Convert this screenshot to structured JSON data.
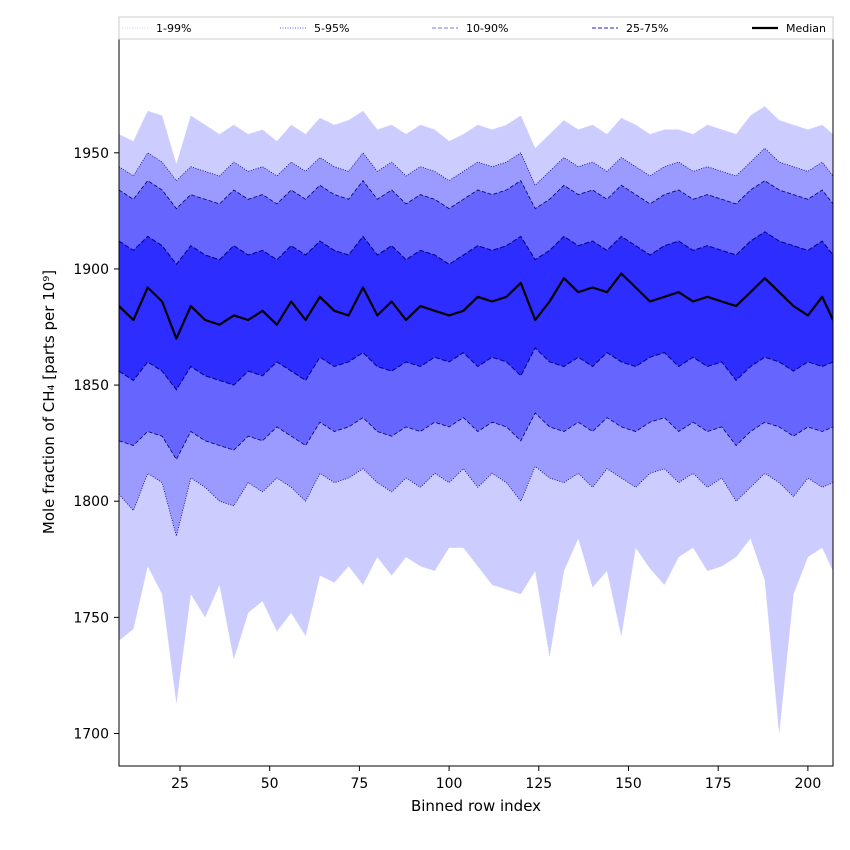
{
  "chart_data": {
    "type": "area",
    "xlabel": "Binned row index",
    "ylabel": "Mole fraction of CH₄ [parts per 10⁹]",
    "xlim": [
      8,
      207
    ],
    "ylim": [
      1686,
      1999
    ],
    "x_ticks": [
      25,
      50,
      75,
      100,
      125,
      150,
      175,
      200
    ],
    "y_ticks": [
      1700,
      1750,
      1800,
      1850,
      1900,
      1950
    ],
    "grid": false,
    "legend_position": "top",
    "legend": [
      {
        "label": "1-99%",
        "style": "dotted",
        "color": "#ccccff"
      },
      {
        "label": "5-95%",
        "style": "dotted",
        "color": "#5555ff"
      },
      {
        "label": "10-90%",
        "style": "dashed",
        "color": "#7777ff"
      },
      {
        "label": "25-75%",
        "style": "dashed",
        "color": "#2222dd"
      },
      {
        "label": "Median",
        "style": "solid",
        "color": "#000000"
      }
    ],
    "colors": {
      "band_1_99": "#ccccff",
      "band_5_95": "#9a9aff",
      "band_10_90": "#6666ff",
      "band_25_75": "#2d2dff",
      "edge_dark": "#000080",
      "median": "#000000"
    },
    "x": [
      8,
      12,
      16,
      20,
      24,
      28,
      32,
      36,
      40,
      44,
      48,
      52,
      56,
      60,
      64,
      68,
      72,
      76,
      80,
      84,
      88,
      92,
      96,
      100,
      104,
      108,
      112,
      116,
      120,
      124,
      128,
      132,
      136,
      140,
      144,
      148,
      152,
      156,
      160,
      164,
      168,
      172,
      176,
      180,
      184,
      188,
      192,
      196,
      200,
      204,
      207
    ],
    "series": [
      {
        "name": "1-99%",
        "lower": [
          1740,
          1745,
          1772,
          1760,
          1713,
          1760,
          1750,
          1764,
          1732,
          1752,
          1757,
          1744,
          1752,
          1742,
          1768,
          1765,
          1772,
          1764,
          1776,
          1768,
          1776,
          1772,
          1770,
          1780,
          1780,
          1772,
          1764,
          1762,
          1760,
          1770,
          1733,
          1770,
          1784,
          1763,
          1770,
          1742,
          1780,
          1771,
          1764,
          1776,
          1780,
          1770,
          1772,
          1776,
          1784,
          1766,
          1700,
          1760,
          1776,
          1780,
          1770
        ],
        "upper": [
          1958,
          1955,
          1968,
          1966,
          1945,
          1966,
          1962,
          1958,
          1962,
          1958,
          1960,
          1955,
          1962,
          1958,
          1965,
          1962,
          1964,
          1968,
          1960,
          1962,
          1958,
          1962,
          1960,
          1955,
          1958,
          1962,
          1960,
          1962,
          1966,
          1952,
          1958,
          1964,
          1960,
          1962,
          1958,
          1965,
          1962,
          1958,
          1960,
          1960,
          1958,
          1962,
          1960,
          1958,
          1966,
          1970,
          1964,
          1962,
          1960,
          1962,
          1958
        ]
      },
      {
        "name": "5-95%",
        "lower": [
          1803,
          1796,
          1812,
          1808,
          1785,
          1810,
          1806,
          1800,
          1798,
          1808,
          1804,
          1810,
          1806,
          1800,
          1812,
          1808,
          1810,
          1814,
          1808,
          1804,
          1810,
          1806,
          1812,
          1808,
          1814,
          1806,
          1812,
          1808,
          1800,
          1815,
          1810,
          1808,
          1812,
          1806,
          1814,
          1810,
          1806,
          1812,
          1814,
          1808,
          1812,
          1806,
          1810,
          1800,
          1806,
          1812,
          1808,
          1802,
          1810,
          1806,
          1808
        ],
        "upper": [
          1944,
          1940,
          1950,
          1946,
          1938,
          1944,
          1942,
          1940,
          1946,
          1942,
          1944,
          1940,
          1946,
          1942,
          1948,
          1944,
          1942,
          1950,
          1942,
          1946,
          1940,
          1944,
          1942,
          1938,
          1942,
          1946,
          1944,
          1946,
          1950,
          1936,
          1942,
          1948,
          1944,
          1946,
          1942,
          1948,
          1944,
          1940,
          1944,
          1946,
          1942,
          1944,
          1942,
          1940,
          1946,
          1952,
          1946,
          1944,
          1942,
          1946,
          1940
        ]
      },
      {
        "name": "10-90%",
        "lower": [
          1826,
          1824,
          1830,
          1828,
          1818,
          1830,
          1826,
          1824,
          1822,
          1828,
          1826,
          1832,
          1828,
          1824,
          1834,
          1830,
          1832,
          1836,
          1830,
          1828,
          1832,
          1830,
          1834,
          1832,
          1836,
          1830,
          1834,
          1832,
          1826,
          1838,
          1832,
          1830,
          1834,
          1830,
          1836,
          1832,
          1830,
          1834,
          1836,
          1830,
          1834,
          1830,
          1832,
          1824,
          1830,
          1834,
          1832,
          1828,
          1832,
          1830,
          1832
        ],
        "upper": [
          1934,
          1930,
          1938,
          1934,
          1926,
          1932,
          1930,
          1928,
          1934,
          1930,
          1932,
          1928,
          1934,
          1930,
          1936,
          1932,
          1930,
          1938,
          1930,
          1934,
          1928,
          1932,
          1930,
          1926,
          1930,
          1934,
          1932,
          1934,
          1938,
          1926,
          1930,
          1936,
          1932,
          1934,
          1930,
          1936,
          1932,
          1928,
          1932,
          1934,
          1930,
          1932,
          1930,
          1928,
          1934,
          1938,
          1934,
          1932,
          1930,
          1934,
          1928
        ]
      },
      {
        "name": "25-75%",
        "lower": [
          1856,
          1852,
          1860,
          1856,
          1848,
          1858,
          1854,
          1852,
          1850,
          1856,
          1854,
          1860,
          1856,
          1852,
          1862,
          1858,
          1860,
          1864,
          1858,
          1856,
          1860,
          1858,
          1862,
          1860,
          1864,
          1858,
          1862,
          1860,
          1854,
          1866,
          1860,
          1858,
          1862,
          1858,
          1864,
          1860,
          1858,
          1862,
          1864,
          1858,
          1862,
          1858,
          1860,
          1852,
          1858,
          1862,
          1860,
          1856,
          1860,
          1858,
          1860
        ],
        "upper": [
          1912,
          1908,
          1914,
          1910,
          1902,
          1910,
          1906,
          1904,
          1910,
          1906,
          1908,
          1904,
          1910,
          1906,
          1912,
          1908,
          1906,
          1914,
          1906,
          1910,
          1904,
          1908,
          1906,
          1902,
          1906,
          1910,
          1908,
          1910,
          1914,
          1904,
          1908,
          1914,
          1910,
          1912,
          1908,
          1914,
          1910,
          1906,
          1910,
          1912,
          1908,
          1910,
          1908,
          1906,
          1912,
          1916,
          1912,
          1910,
          1908,
          1912,
          1906
        ]
      },
      {
        "name": "Median",
        "values": [
          1884,
          1878,
          1892,
          1886,
          1870,
          1884,
          1878,
          1876,
          1880,
          1878,
          1882,
          1876,
          1886,
          1878,
          1888,
          1882,
          1880,
          1892,
          1880,
          1886,
          1878,
          1884,
          1882,
          1880,
          1882,
          1888,
          1886,
          1888,
          1894,
          1878,
          1886,
          1896,
          1890,
          1892,
          1890,
          1898,
          1892,
          1886,
          1888,
          1890,
          1886,
          1888,
          1886,
          1884,
          1890,
          1896,
          1890,
          1884,
          1880,
          1888,
          1878
        ]
      }
    ]
  }
}
